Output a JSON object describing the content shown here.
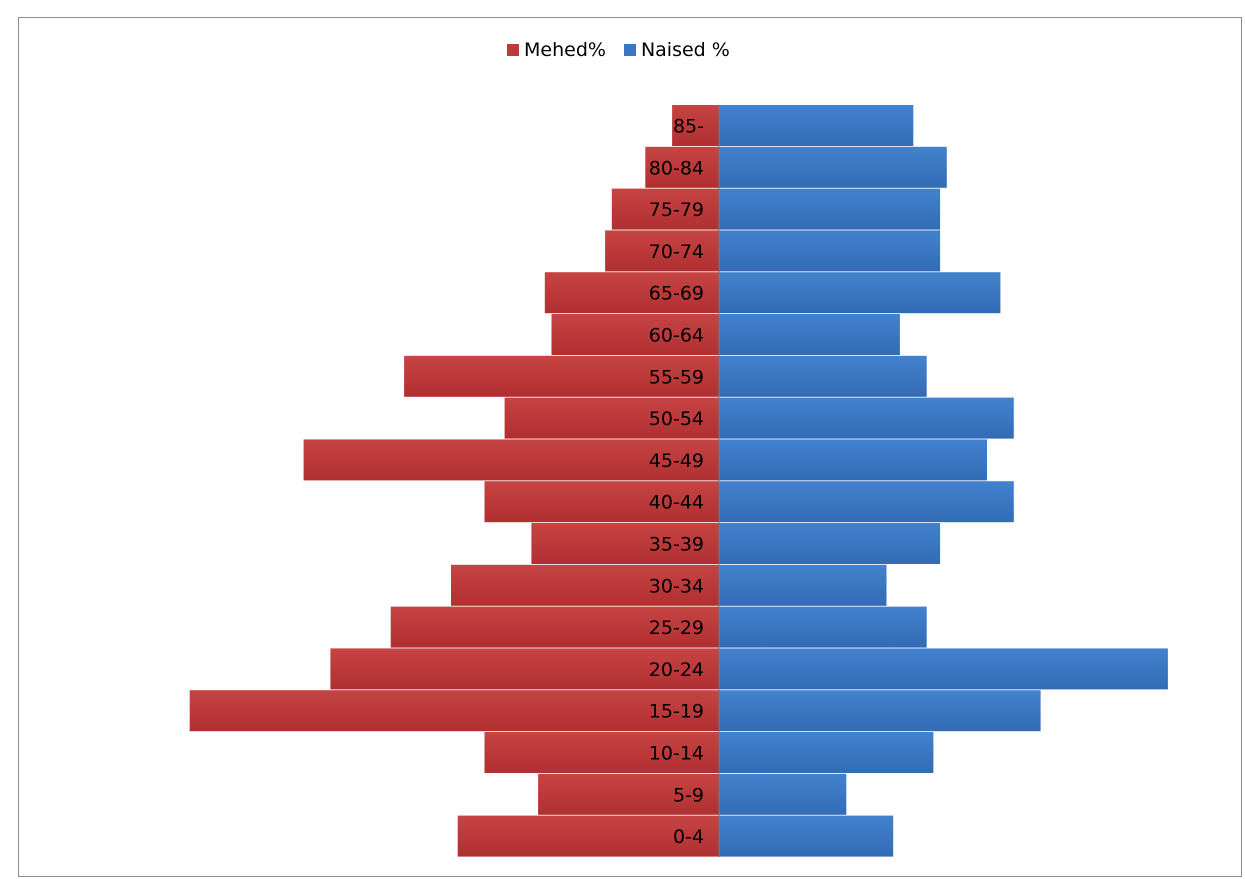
{
  "chart_data": {
    "type": "bar",
    "orientation": "horizontal-diverging",
    "categories": [
      "85-",
      "80-84",
      "75-79",
      "70-74",
      "65-69",
      "60-64",
      "55-59",
      "50-54",
      "45-49",
      "40-44",
      "35-39",
      "30-34",
      "25-29",
      "20-24",
      "15-19",
      "10-14",
      "5-9",
      "0-4"
    ],
    "series": [
      {
        "name": "Mehed%",
        "color": "#c0393a",
        "side": "left",
        "values": [
          0.7,
          1.1,
          1.6,
          1.7,
          2.6,
          2.5,
          4.7,
          3.2,
          6.2,
          3.5,
          2.8,
          4.0,
          4.9,
          5.8,
          7.9,
          3.5,
          2.7,
          3.9
        ]
      },
      {
        "name": "Naised %",
        "color": "#3a76c4",
        "side": "right",
        "values": [
          2.9,
          3.4,
          3.3,
          3.3,
          4.2,
          2.7,
          3.1,
          4.4,
          4.0,
          4.4,
          3.3,
          2.5,
          3.1,
          6.7,
          4.8,
          3.2,
          1.9,
          2.6
        ]
      }
    ],
    "legend_position": "top",
    "grid": false,
    "title": "",
    "xlabel": "",
    "ylabel": ""
  }
}
